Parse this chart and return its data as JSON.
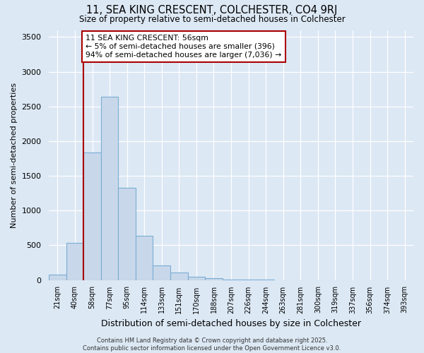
{
  "title": "11, SEA KING CRESCENT, COLCHESTER, CO4 9RJ",
  "subtitle": "Size of property relative to semi-detached houses in Colchester",
  "xlabel": "Distribution of semi-detached houses by size in Colchester",
  "ylabel": "Number of semi-detached properties",
  "footer_line1": "Contains HM Land Registry data © Crown copyright and database right 2025.",
  "footer_line2": "Contains public sector information licensed under the Open Government Licence v3.0.",
  "annotation_title": "11 SEA KING CRESCENT: 56sqm",
  "annotation_line1": "← 5% of semi-detached houses are smaller (396)",
  "annotation_line2": "94% of semi-detached houses are larger (7,036) →",
  "bar_color": "#c8d8ea",
  "bar_edge_color": "#7aadd4",
  "marker_color": "#aa0000",
  "background_color": "#dce8f4",
  "grid_color": "#ffffff",
  "bins": [
    "21sqm",
    "40sqm",
    "58sqm",
    "77sqm",
    "95sqm",
    "114sqm",
    "133sqm",
    "151sqm",
    "170sqm",
    "188sqm",
    "207sqm",
    "226sqm",
    "244sqm",
    "263sqm",
    "281sqm",
    "300sqm",
    "319sqm",
    "337sqm",
    "356sqm",
    "374sqm",
    "393sqm"
  ],
  "values": [
    75,
    540,
    1840,
    2640,
    1330,
    640,
    210,
    110,
    50,
    30,
    10,
    5,
    2,
    0,
    0,
    0,
    0,
    0,
    0,
    0,
    0
  ],
  "marker_bin_index": 2,
  "ylim": [
    0,
    3600
  ],
  "yticks": [
    0,
    500,
    1000,
    1500,
    2000,
    2500,
    3000,
    3500
  ]
}
